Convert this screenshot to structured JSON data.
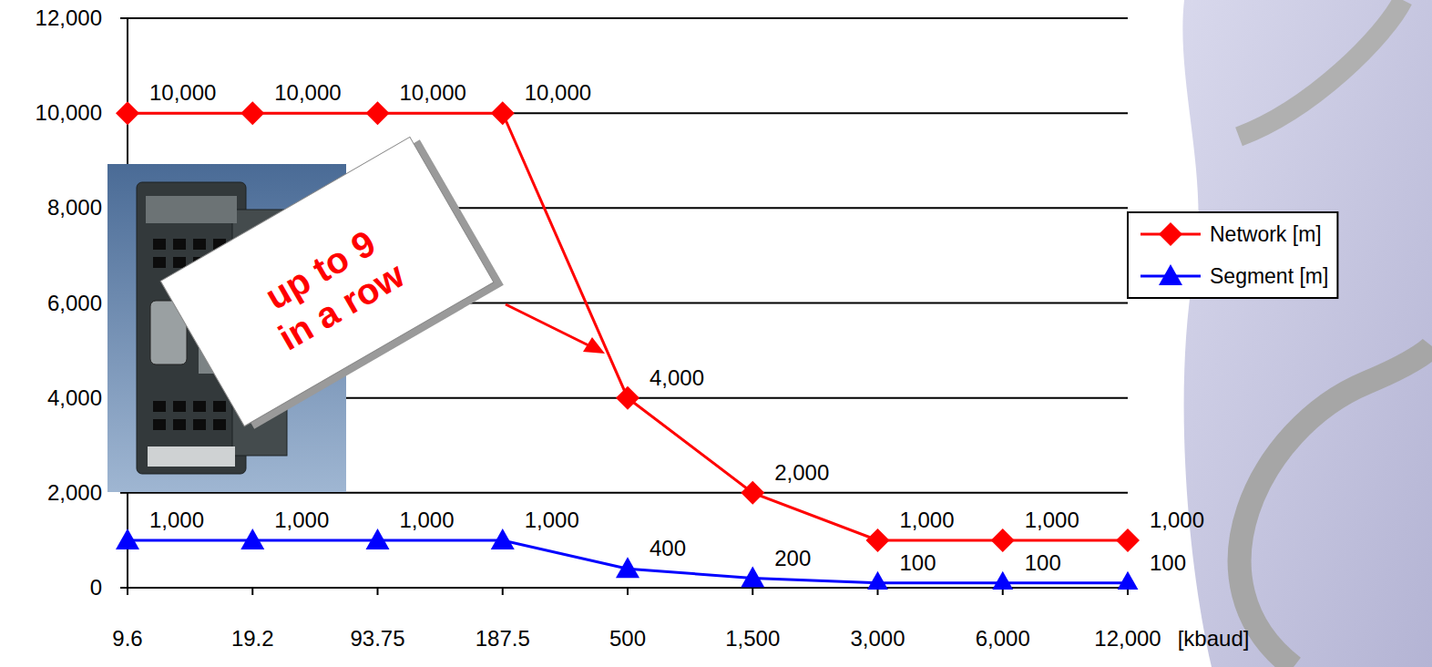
{
  "chart_data": {
    "type": "line",
    "x_label": "[kbaud]",
    "categories": [
      "9.6",
      "19.2",
      "93.75",
      "187.5",
      "500",
      "1,500",
      "3,000",
      "6,000",
      "12,000"
    ],
    "series": [
      {
        "name": "Network [m]",
        "color": "#ff0000",
        "marker": "diamond",
        "line_style": "solid",
        "values": [
          10000,
          10000,
          10000,
          10000,
          4000,
          2000,
          1000,
          1000,
          1000
        ],
        "value_labels": [
          "10,000",
          "10,000",
          "10,000",
          "10,000",
          "4,000",
          "2,000",
          "1,000",
          "1,000",
          "1,000"
        ]
      },
      {
        "name": "Segment [m]",
        "color": "#0000ff",
        "marker": "triangle",
        "line_style": "solid",
        "values": [
          1000,
          1000,
          1000,
          1000,
          400,
          200,
          100,
          100,
          100
        ],
        "value_labels": [
          "1,000",
          "1,000",
          "1,000",
          "1,000",
          "400",
          "200",
          "100",
          "100",
          "100"
        ]
      }
    ],
    "ylim": [
      0,
      12000
    ],
    "yticks": [
      0,
      {
        "value": 2000,
        "label": "2,000"
      },
      {
        "value": 4000,
        "label": "4,000"
      },
      {
        "value": 6000,
        "label": "6,000"
      },
      {
        "value": 8000,
        "label": "8,000"
      },
      {
        "value": 10000,
        "label": "10,000"
      },
      {
        "value": 12000,
        "label": "12,000"
      }
    ],
    "grid": true,
    "legend": "right",
    "data_labels": true,
    "annotations": [
      {
        "text": "up to 9 in a row"
      }
    ]
  }
}
